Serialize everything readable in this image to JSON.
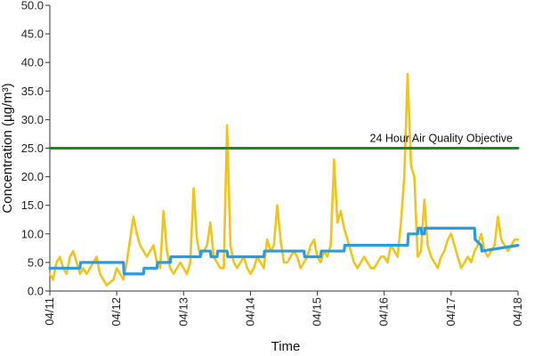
{
  "chart_data": {
    "type": "line",
    "xlabel": "Time",
    "ylabel": "Concentration (µg/m³)",
    "ylim": [
      0,
      50
    ],
    "yticks": [
      "0.0",
      "5.0",
      "10.0",
      "15.0",
      "20.0",
      "25.0",
      "30.0",
      "35.0",
      "40.0",
      "45.0",
      "50.0"
    ],
    "xlim": [
      0,
      7
    ],
    "xticks": [
      "04/11",
      "04/12",
      "04/13",
      "04/14",
      "04/15",
      "04/16",
      "04/17",
      "04/18"
    ],
    "grid": false,
    "annotations": [
      {
        "text": "24 Hour Air Quality Objective",
        "y": 25
      }
    ],
    "series": [
      {
        "color": "#f0c419",
        "x": [
          0.0,
          0.05,
          0.1,
          0.15,
          0.2,
          0.25,
          0.3,
          0.35,
          0.4,
          0.45,
          0.5,
          0.55,
          0.6,
          0.65,
          0.7,
          0.75,
          0.8,
          0.85,
          0.9,
          0.95,
          1.0,
          1.05,
          1.1,
          1.15,
          1.2,
          1.25,
          1.3,
          1.35,
          1.4,
          1.45,
          1.5,
          1.55,
          1.6,
          1.65,
          1.7,
          1.75,
          1.8,
          1.85,
          1.9,
          1.95,
          2.0,
          2.05,
          2.1,
          2.15,
          2.2,
          2.25,
          2.3,
          2.35,
          2.4,
          2.45,
          2.5,
          2.55,
          2.6,
          2.65,
          2.7,
          2.75,
          2.8,
          2.85,
          2.9,
          2.95,
          3.0,
          3.05,
          3.1,
          3.15,
          3.2,
          3.25,
          3.3,
          3.35,
          3.4,
          3.45,
          3.5,
          3.55,
          3.6,
          3.65,
          3.7,
          3.75,
          3.8,
          3.85,
          3.9,
          3.95,
          4.0,
          4.05,
          4.1,
          4.15,
          4.2,
          4.25,
          4.3,
          4.35,
          4.4,
          4.45,
          4.5,
          4.55,
          4.6,
          4.65,
          4.7,
          4.75,
          4.8,
          4.85,
          4.9,
          4.95,
          5.0,
          5.05,
          5.1,
          5.15,
          5.2,
          5.25,
          5.3,
          5.35,
          5.4,
          5.45,
          5.5,
          5.55,
          5.6,
          5.65,
          5.7,
          5.75,
          5.8,
          5.85,
          5.9,
          5.95,
          6.0,
          6.05,
          6.1,
          6.15,
          6.2,
          6.25,
          6.3,
          6.35,
          6.4,
          6.45,
          6.5,
          6.55,
          6.6,
          6.65,
          6.7,
          6.75,
          6.8,
          6.85,
          6.9,
          6.95,
          7.0
        ],
        "values": [
          3,
          2,
          5,
          6,
          4,
          3,
          6,
          7,
          5,
          3,
          4,
          3,
          4,
          5,
          6,
          3,
          2,
          1,
          1.5,
          2,
          4,
          3,
          2,
          5,
          9,
          13,
          10,
          8,
          7,
          6,
          7,
          8,
          5,
          4,
          14,
          7,
          4,
          3,
          4,
          5,
          4,
          3,
          5,
          18,
          9,
          6,
          7,
          8,
          12,
          6,
          5,
          4,
          4,
          29,
          8,
          5,
          4,
          5,
          6,
          4,
          3,
          4,
          6,
          5,
          4,
          9,
          7,
          8,
          15,
          9,
          5,
          5,
          6,
          7,
          6,
          4,
          5,
          6,
          8,
          9,
          6,
          5,
          7,
          6,
          8,
          23,
          12,
          14,
          11,
          9,
          7,
          5,
          4,
          5,
          6,
          5,
          4,
          4,
          5,
          6,
          6,
          5,
          8,
          7,
          6,
          12,
          20,
          38,
          22,
          20,
          6,
          7,
          16,
          8,
          6,
          5,
          4,
          6,
          7,
          9,
          10,
          8,
          6,
          4,
          5,
          6,
          5,
          7,
          8,
          10,
          7,
          6,
          7,
          8,
          13,
          9,
          8,
          7,
          8,
          9,
          9
        ]
      },
      {
        "color": "#2b9be0",
        "x": [
          0.0,
          0.45,
          0.46,
          1.1,
          1.11,
          1.4,
          1.41,
          1.6,
          1.61,
          1.8,
          1.81,
          2.25,
          2.26,
          2.4,
          2.41,
          2.5,
          2.51,
          2.65,
          2.66,
          3.0,
          3.2,
          3.21,
          3.45,
          3.46,
          3.8,
          3.81,
          4.05,
          4.06,
          4.4,
          4.41,
          4.5,
          4.51,
          5.35,
          5.36,
          5.5,
          5.51,
          5.55,
          5.56,
          5.6,
          5.61,
          6.35,
          6.36,
          6.45,
          6.46,
          7.0
        ],
        "values": [
          4,
          4,
          5,
          5,
          3,
          3,
          4,
          4,
          5,
          5,
          6,
          6,
          7,
          7,
          6,
          6,
          7,
          7,
          6,
          6,
          6,
          7,
          7,
          7,
          7,
          6,
          6,
          7,
          7,
          8,
          8,
          8,
          8,
          10,
          10,
          11,
          11,
          10,
          10,
          11,
          11,
          9,
          8,
          7,
          8
        ]
      },
      {
        "color": "#1a8a1a",
        "x": [
          0,
          7
        ],
        "values": [
          25,
          25
        ]
      }
    ]
  }
}
